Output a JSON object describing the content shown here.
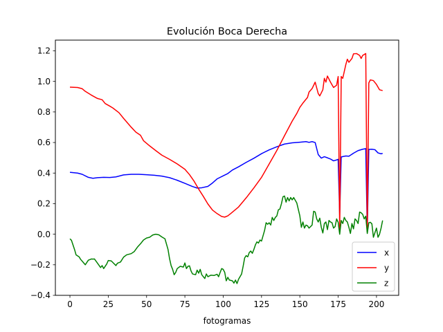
{
  "chart_data": {
    "type": "line",
    "title": "Evolución Boca Derecha",
    "xlabel": "fotogramas",
    "ylabel": "",
    "xlim": [
      -9.5,
      214.5
    ],
    "ylim": [
      -0.4,
      1.27
    ],
    "xticks": [
      0,
      25,
      50,
      75,
      100,
      125,
      150,
      175,
      200
    ],
    "yticks": [
      -0.4,
      -0.2,
      0.0,
      0.2,
      0.4,
      0.6,
      0.8,
      1.0,
      1.2
    ],
    "ytick_labels": [
      "−0.4",
      "−0.2",
      "0.0",
      "0.2",
      "0.4",
      "0.6",
      "0.8",
      "1.0",
      "1.2"
    ],
    "grid": false,
    "legend_position": "lower-right",
    "series": [
      {
        "name": "x",
        "color": "#0000ff",
        "points": [
          [
            0,
            0.405
          ],
          [
            5,
            0.4
          ],
          [
            8,
            0.392
          ],
          [
            12,
            0.372
          ],
          [
            15,
            0.366
          ],
          [
            18,
            0.37
          ],
          [
            22,
            0.372
          ],
          [
            26,
            0.371
          ],
          [
            30,
            0.375
          ],
          [
            35,
            0.388
          ],
          [
            40,
            0.392
          ],
          [
            45,
            0.392
          ],
          [
            50,
            0.389
          ],
          [
            55,
            0.386
          ],
          [
            60,
            0.38
          ],
          [
            65,
            0.37
          ],
          [
            70,
            0.353
          ],
          [
            75,
            0.333
          ],
          [
            80,
            0.312
          ],
          [
            83,
            0.302
          ],
          [
            86,
            0.304
          ],
          [
            90,
            0.313
          ],
          [
            93,
            0.335
          ],
          [
            96,
            0.362
          ],
          [
            100,
            0.382
          ],
          [
            103,
            0.397
          ],
          [
            106,
            0.42
          ],
          [
            110,
            0.441
          ],
          [
            115,
            0.47
          ],
          [
            120,
            0.497
          ],
          [
            125,
            0.527
          ],
          [
            130,
            0.552
          ],
          [
            135,
            0.572
          ],
          [
            140,
            0.59
          ],
          [
            145,
            0.598
          ],
          [
            150,
            0.602
          ],
          [
            154,
            0.606
          ],
          [
            156,
            0.601
          ],
          [
            158,
            0.606
          ],
          [
            160,
            0.6
          ],
          [
            162,
            0.521
          ],
          [
            164,
            0.498
          ],
          [
            166,
            0.507
          ],
          [
            168,
            0.5
          ],
          [
            170,
            0.492
          ],
          [
            172,
            0.48
          ],
          [
            174,
            0.486
          ],
          [
            175,
            0.49
          ],
          [
            176,
            0.125
          ],
          [
            177,
            0.505
          ],
          [
            178,
            0.508
          ],
          [
            180,
            0.512
          ],
          [
            182,
            0.51
          ],
          [
            185,
            0.53
          ],
          [
            188,
            0.547
          ],
          [
            191,
            0.556
          ],
          [
            193,
            0.56
          ],
          [
            194,
            0.015
          ],
          [
            195,
            0.555
          ],
          [
            197,
            0.556
          ],
          [
            199,
            0.553
          ],
          [
            201,
            0.532
          ],
          [
            203,
            0.526
          ],
          [
            204,
            0.529
          ]
        ]
      },
      {
        "name": "y",
        "color": "#ff0000",
        "points": [
          [
            0,
            0.962
          ],
          [
            5,
            0.96
          ],
          [
            8,
            0.952
          ],
          [
            10,
            0.935
          ],
          [
            14,
            0.91
          ],
          [
            18,
            0.888
          ],
          [
            21,
            0.88
          ],
          [
            23,
            0.855
          ],
          [
            26,
            0.838
          ],
          [
            28,
            0.826
          ],
          [
            32,
            0.795
          ],
          [
            35,
            0.758
          ],
          [
            40,
            0.7
          ],
          [
            43,
            0.668
          ],
          [
            46,
            0.648
          ],
          [
            48,
            0.612
          ],
          [
            52,
            0.578
          ],
          [
            56,
            0.547
          ],
          [
            60,
            0.517
          ],
          [
            65,
            0.49
          ],
          [
            70,
            0.46
          ],
          [
            75,
            0.425
          ],
          [
            78,
            0.39
          ],
          [
            81,
            0.347
          ],
          [
            84,
            0.295
          ],
          [
            87,
            0.248
          ],
          [
            90,
            0.198
          ],
          [
            93,
            0.158
          ],
          [
            96,
            0.135
          ],
          [
            99,
            0.116
          ],
          [
            101,
            0.112
          ],
          [
            103,
            0.12
          ],
          [
            105,
            0.136
          ],
          [
            110,
            0.178
          ],
          [
            115,
            0.238
          ],
          [
            120,
            0.303
          ],
          [
            125,
            0.372
          ],
          [
            130,
            0.46
          ],
          [
            135,
            0.548
          ],
          [
            140,
            0.645
          ],
          [
            145,
            0.74
          ],
          [
            148,
            0.79
          ],
          [
            150,
            0.83
          ],
          [
            152,
            0.858
          ],
          [
            155,
            0.895
          ],
          [
            156,
            0.93
          ],
          [
            158,
            0.953
          ],
          [
            160,
            0.995
          ],
          [
            162,
            0.92
          ],
          [
            163,
            0.905
          ],
          [
            165,
            0.945
          ],
          [
            166,
            1.02
          ],
          [
            167,
            0.995
          ],
          [
            168,
            1.035
          ],
          [
            170,
            0.995
          ],
          [
            172,
            0.96
          ],
          [
            174,
            0.975
          ],
          [
            175,
            1.032
          ],
          [
            176,
            0.02
          ],
          [
            177,
            1.032
          ],
          [
            178,
            1.02
          ],
          [
            180,
            1.11
          ],
          [
            181,
            1.145
          ],
          [
            182,
            1.125
          ],
          [
            184,
            1.15
          ],
          [
            185,
            1.18
          ],
          [
            187,
            1.182
          ],
          [
            189,
            1.17
          ],
          [
            190,
            1.15
          ],
          [
            191,
            1.17
          ],
          [
            193,
            1.182
          ],
          [
            194,
            0.015
          ],
          [
            195,
            0.99
          ],
          [
            196,
            1.01
          ],
          [
            198,
            1.005
          ],
          [
            200,
            0.98
          ],
          [
            202,
            0.945
          ],
          [
            204,
            0.94
          ]
        ]
      },
      {
        "name": "z",
        "color": "#008000",
        "points": [
          [
            0,
            -0.03
          ],
          [
            1,
            -0.04
          ],
          [
            3,
            -0.1
          ],
          [
            4,
            -0.135
          ],
          [
            6,
            -0.148
          ],
          [
            7,
            -0.165
          ],
          [
            9,
            -0.188
          ],
          [
            10,
            -0.2
          ],
          [
            12,
            -0.17
          ],
          [
            14,
            -0.162
          ],
          [
            15,
            -0.163
          ],
          [
            16,
            -0.162
          ],
          [
            18,
            -0.19
          ],
          [
            20,
            -0.218
          ],
          [
            21,
            -0.205
          ],
          [
            22,
            -0.225
          ],
          [
            24,
            -0.195
          ],
          [
            25,
            -0.172
          ],
          [
            27,
            -0.175
          ],
          [
            28,
            -0.185
          ],
          [
            30,
            -0.205
          ],
          [
            31,
            -0.19
          ],
          [
            33,
            -0.182
          ],
          [
            35,
            -0.15
          ],
          [
            37,
            -0.135
          ],
          [
            40,
            -0.127
          ],
          [
            42,
            -0.113
          ],
          [
            44,
            -0.085
          ],
          [
            46,
            -0.063
          ],
          [
            48,
            -0.038
          ],
          [
            50,
            -0.025
          ],
          [
            52,
            -0.02
          ],
          [
            54,
            -0.005
          ],
          [
            56,
            0.0
          ],
          [
            58,
            -0.004
          ],
          [
            60,
            -0.018
          ],
          [
            62,
            -0.03
          ],
          [
            64,
            -0.1
          ],
          [
            65,
            -0.16
          ],
          [
            66,
            -0.205
          ],
          [
            67,
            -0.23
          ],
          [
            68,
            -0.265
          ],
          [
            69,
            -0.25
          ],
          [
            70,
            -0.225
          ],
          [
            72,
            -0.21
          ],
          [
            74,
            -0.215
          ],
          [
            75,
            -0.188
          ],
          [
            76,
            -0.225
          ],
          [
            77,
            -0.21
          ],
          [
            78,
            -0.207
          ],
          [
            79,
            -0.24
          ],
          [
            80,
            -0.26
          ],
          [
            82,
            -0.265
          ],
          [
            83,
            -0.235
          ],
          [
            84,
            -0.255
          ],
          [
            85,
            -0.23
          ],
          [
            86,
            -0.265
          ],
          [
            88,
            -0.29
          ],
          [
            89,
            -0.26
          ],
          [
            90,
            -0.278
          ],
          [
            92,
            -0.268
          ],
          [
            94,
            -0.27
          ],
          [
            96,
            -0.262
          ],
          [
            97,
            -0.278
          ],
          [
            98,
            -0.25
          ],
          [
            99,
            -0.225
          ],
          [
            100,
            -0.23
          ],
          [
            101,
            -0.25
          ],
          [
            102,
            -0.305
          ],
          [
            103,
            -0.282
          ],
          [
            104,
            -0.3
          ],
          [
            106,
            -0.305
          ],
          [
            107,
            -0.32
          ],
          [
            108,
            -0.3
          ],
          [
            109,
            -0.323
          ],
          [
            110,
            -0.295
          ],
          [
            112,
            -0.26
          ],
          [
            113,
            -0.21
          ],
          [
            114,
            -0.155
          ],
          [
            115,
            -0.14
          ],
          [
            116,
            -0.148
          ],
          [
            117,
            -0.12
          ],
          [
            118,
            -0.11
          ],
          [
            119,
            -0.125
          ],
          [
            120,
            -0.1
          ],
          [
            121,
            -0.07
          ],
          [
            122,
            -0.05
          ],
          [
            123,
            -0.058
          ],
          [
            124,
            -0.038
          ],
          [
            125,
            -0.045
          ],
          [
            126,
            -0.01
          ],
          [
            127,
            0.025
          ],
          [
            128,
            0.075
          ],
          [
            129,
            0.065
          ],
          [
            130,
            0.075
          ],
          [
            131,
            0.06
          ],
          [
            132,
            0.11
          ],
          [
            133,
            0.09
          ],
          [
            134,
            0.11
          ],
          [
            135,
            0.12
          ],
          [
            136,
            0.16
          ],
          [
            137,
            0.165
          ],
          [
            138,
            0.2
          ],
          [
            139,
            0.245
          ],
          [
            140,
            0.25
          ],
          [
            141,
            0.21
          ],
          [
            142,
            0.24
          ],
          [
            143,
            0.218
          ],
          [
            144,
            0.24
          ],
          [
            145,
            0.225
          ],
          [
            146,
            0.24
          ],
          [
            148,
            0.205
          ],
          [
            150,
            0.12
          ],
          [
            151,
            0.045
          ],
          [
            152,
            0.08
          ],
          [
            153,
            0.04
          ],
          [
            154,
            0.06
          ],
          [
            155,
            0.055
          ],
          [
            156,
            0.04
          ],
          [
            157,
            0.05
          ],
          [
            158,
            0.06
          ],
          [
            159,
            0.15
          ],
          [
            160,
            0.145
          ],
          [
            161,
            0.1
          ],
          [
            162,
            0.08
          ],
          [
            163,
            0.105
          ],
          [
            164,
            0.045
          ],
          [
            165,
            0.008
          ],
          [
            166,
            0.07
          ],
          [
            167,
            0.08
          ],
          [
            168,
            0.03
          ],
          [
            169,
            0.09
          ],
          [
            170,
            0.08
          ],
          [
            171,
            0.075
          ],
          [
            172,
            0.04
          ],
          [
            173,
            0.05
          ],
          [
            174,
            0.1
          ],
          [
            175,
            0.078
          ],
          [
            176,
            0.0
          ],
          [
            177,
            0.09
          ],
          [
            178,
            0.07
          ],
          [
            179,
            0.11
          ],
          [
            180,
            0.09
          ],
          [
            181,
            0.08
          ],
          [
            182,
            0.045
          ],
          [
            183,
            0.005
          ],
          [
            184,
            0.07
          ],
          [
            185,
            0.035
          ],
          [
            186,
            0.1
          ],
          [
            187,
            0.09
          ],
          [
            188,
            0.07
          ],
          [
            189,
            0.145
          ],
          [
            190,
            0.14
          ],
          [
            191,
            0.13
          ],
          [
            192,
            0.1
          ],
          [
            193,
            0.118
          ],
          [
            194,
            0.005
          ],
          [
            195,
            0.075
          ],
          [
            196,
            0.078
          ],
          [
            197,
            0.068
          ],
          [
            198,
            -0.02
          ],
          [
            199,
            0.01
          ],
          [
            200,
            0.04
          ],
          [
            201,
            -0.02
          ],
          [
            202,
            0.0
          ],
          [
            203,
            0.04
          ],
          [
            204,
            0.09
          ]
        ]
      }
    ]
  }
}
